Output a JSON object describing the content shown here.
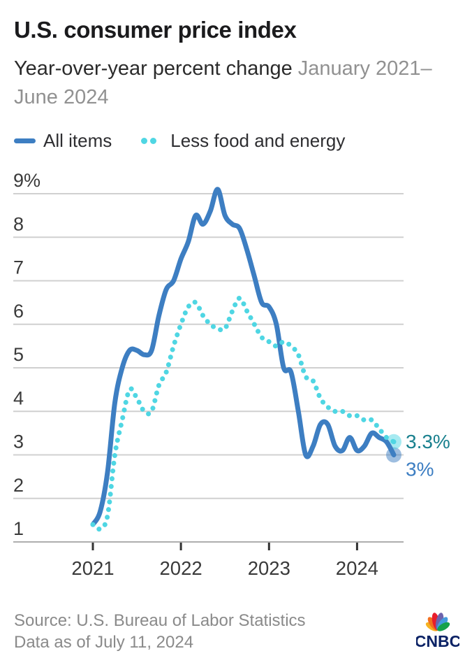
{
  "header": {
    "title": "U.S. consumer price index",
    "subtitle": "Year-over-year percent change",
    "period_line1": "January 2021–",
    "period_line2": "June 2024"
  },
  "legend": {
    "items": [
      {
        "label": "All items",
        "color": "#3d7ec2",
        "swatch": "line"
      },
      {
        "label": "Less food and energy",
        "color": "#4fd6e3",
        "swatch": "dots"
      }
    ]
  },
  "chart_data": {
    "type": "line",
    "title": "U.S. consumer price index",
    "ylabel": "Year-over-year percent change (%)",
    "x_unit": "month",
    "x_start": "2021-01",
    "x_end": "2024-06",
    "ylim": [
      1,
      9
    ],
    "grid": true,
    "legend_position": "top",
    "y_ticks": [
      {
        "value": 9,
        "label": "9%"
      },
      {
        "value": 8,
        "label": "8"
      },
      {
        "value": 7,
        "label": "7"
      },
      {
        "value": 6,
        "label": "6"
      },
      {
        "value": 5,
        "label": "5"
      },
      {
        "value": 4,
        "label": "4"
      },
      {
        "value": 3,
        "label": "3"
      },
      {
        "value": 2,
        "label": "2"
      },
      {
        "value": 1,
        "label": "1"
      }
    ],
    "x_ticks": [
      {
        "month_index": 0,
        "label": "2021"
      },
      {
        "month_index": 12,
        "label": "2022"
      },
      {
        "month_index": 24,
        "label": "2023"
      },
      {
        "month_index": 36,
        "label": "2024"
      }
    ],
    "series": [
      {
        "name": "All items",
        "style": "solid",
        "color": "#3d7ec2",
        "end_label": "3%",
        "end_label_color": "#3d7ec2",
        "end_label_dy": 30,
        "values": [
          1.4,
          1.7,
          2.6,
          4.2,
          5.0,
          5.4,
          5.4,
          5.3,
          5.4,
          6.2,
          6.8,
          7.0,
          7.5,
          7.9,
          8.5,
          8.3,
          8.6,
          9.1,
          8.5,
          8.3,
          8.2,
          7.7,
          7.1,
          6.5,
          6.4,
          6.0,
          5.0,
          4.9,
          4.0,
          3.0,
          3.2,
          3.7,
          3.7,
          3.2,
          3.1,
          3.4,
          3.1,
          3.2,
          3.5,
          3.4,
          3.3,
          3.0
        ]
      },
      {
        "name": "Less food and energy",
        "style": "dotted",
        "color": "#4fd6e3",
        "end_label": "3.3%",
        "end_label_color": "#19808e",
        "end_label_dy": 9,
        "values": [
          1.4,
          1.3,
          1.6,
          3.0,
          3.8,
          4.5,
          4.3,
          4.0,
          4.0,
          4.6,
          4.9,
          5.5,
          6.0,
          6.4,
          6.5,
          6.2,
          6.0,
          5.9,
          5.9,
          6.3,
          6.6,
          6.3,
          6.0,
          5.7,
          5.6,
          5.5,
          5.6,
          5.5,
          5.3,
          4.8,
          4.7,
          4.3,
          4.1,
          4.0,
          4.0,
          3.9,
          3.9,
          3.8,
          3.8,
          3.6,
          3.4,
          3.3
        ]
      }
    ],
    "colors": {
      "grid": "#d0d0d0",
      "axis": "#aeaeae",
      "tick": "#333333",
      "axis_text": "#3a3a3a"
    }
  },
  "footer": {
    "source": "Source: U.S. Bureau of Labor Statistics",
    "as_of": "Data as of July 11, 2024",
    "logo_text": "CNBC"
  }
}
